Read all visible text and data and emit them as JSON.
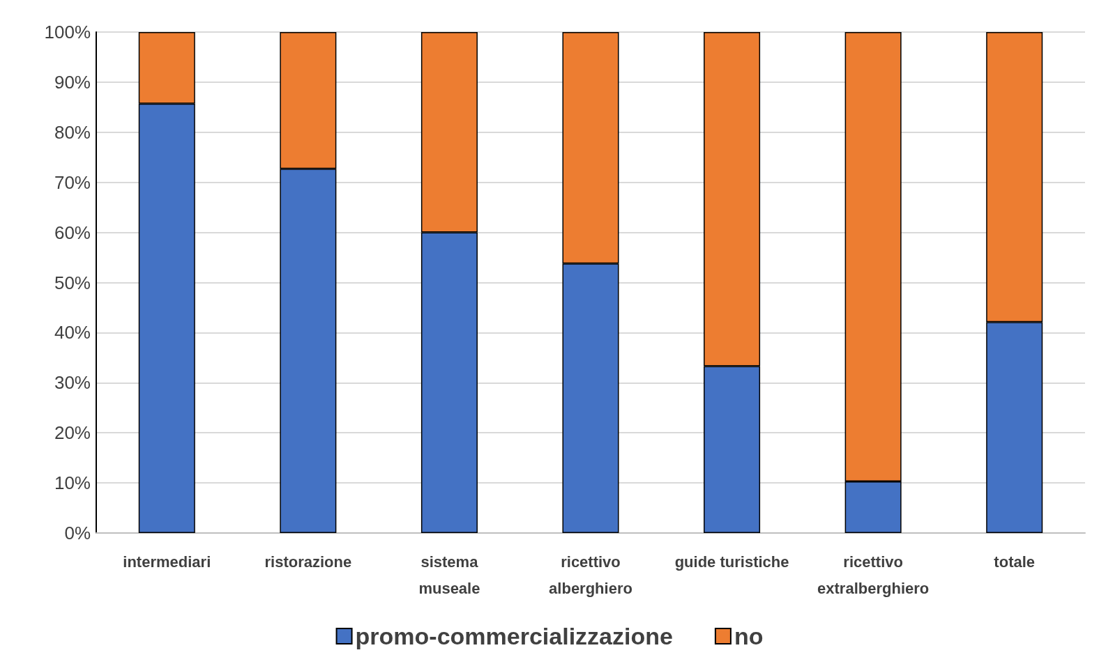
{
  "chart_data": {
    "type": "bar",
    "stacked": true,
    "categories": [
      "intermediari",
      "ristorazione",
      "sistema\nmuseale",
      "ricettivo\nalberghiero",
      "guide turistiche",
      "ricettivo\nextralberghiero",
      "totale"
    ],
    "series": [
      {
        "name": "promo-commercializzazione",
        "color": "#4472c4",
        "values": [
          85.7,
          72.7,
          60,
          53.8,
          33.3,
          10.3,
          42.1
        ]
      },
      {
        "name": "no",
        "color": "#ed7d31",
        "values": [
          14.3,
          27.3,
          40,
          46.2,
          66.7,
          89.7,
          57.9
        ]
      }
    ],
    "ylim": [
      0,
      100
    ],
    "yticks": [
      {
        "value": 0,
        "label": "0%"
      },
      {
        "value": 10,
        "label": "10%"
      },
      {
        "value": 20,
        "label": "20%"
      },
      {
        "value": 30,
        "label": "30%"
      },
      {
        "value": 40,
        "label": "40%"
      },
      {
        "value": 50,
        "label": "50%"
      },
      {
        "value": 60,
        "label": "60%"
      },
      {
        "value": 70,
        "label": "70%"
      },
      {
        "value": 80,
        "label": "80%"
      },
      {
        "value": 90,
        "label": "90%"
      },
      {
        "value": 100,
        "label": "100%"
      }
    ],
    "grid": "y",
    "legend": "bottom"
  }
}
